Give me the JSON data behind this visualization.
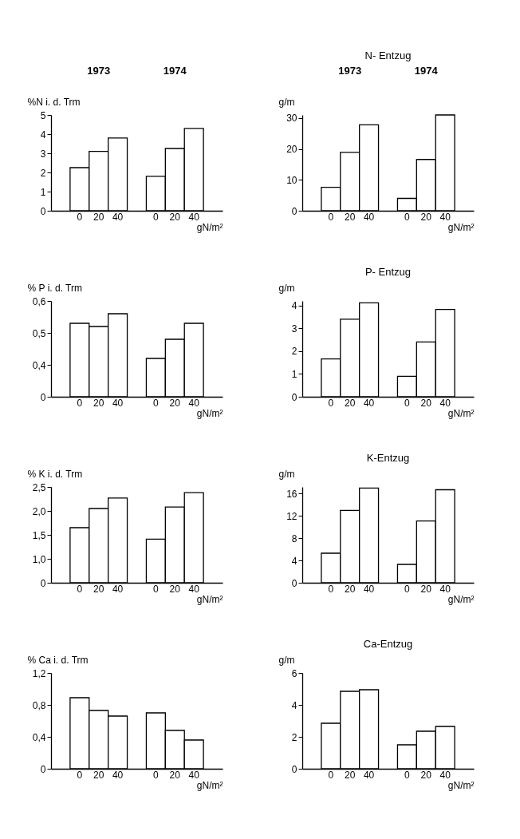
{
  "chart_data": [
    {
      "type": "bar",
      "ylabel": "%N i. d. Trm",
      "xlabel": "gN/m²",
      "annotations": [
        "1973",
        "1974"
      ],
      "categories": [
        "0",
        "20",
        "40",
        "0",
        "20",
        "40"
      ],
      "values": [
        2.25,
        3.1,
        3.8,
        1.8,
        3.25,
        4.3
      ],
      "color": "#ffffff",
      "ylim": [
        0,
        5
      ],
      "yticks": [
        0,
        1,
        2,
        3,
        4,
        5
      ]
    },
    {
      "type": "bar",
      "title": "N- Entzug",
      "ylabel": "g/m",
      "xlabel": "gN/m²",
      "annotations": [
        "1973",
        "1974"
      ],
      "categories": [
        "0",
        "20",
        "40",
        "0",
        "20",
        "40"
      ],
      "values": [
        7.6,
        18.9,
        27.8,
        4,
        16.6,
        31
      ],
      "color": "#ffffff",
      "ylim": [
        0,
        31
      ],
      "yticks": [
        0,
        10,
        20,
        30
      ]
    },
    {
      "type": "bar",
      "ylabel": "% P i. d. Trm",
      "xlabel": "gN/m²",
      "categories": [
        "0",
        "20",
        "40",
        "0",
        "20",
        "40"
      ],
      "values": [
        0.53,
        0.52,
        0.56,
        0.42,
        0.48,
        0.53
      ],
      "color": "#ffffff",
      "ylim": [
        0.3,
        0.6
      ],
      "yticks": [
        {
          "value": 0.3,
          "label": "0"
        },
        {
          "value": 0.4,
          "label": "0,4"
        },
        {
          "value": 0.5,
          "label": "0,5"
        },
        {
          "value": 0.6,
          "label": "0,6"
        }
      ]
    },
    {
      "type": "bar",
      "title": "P- Entzug",
      "ylabel": "g/m",
      "xlabel": "gN/m²",
      "categories": [
        "0",
        "20",
        "40",
        "0",
        "20",
        "40"
      ],
      "values": [
        1.66,
        3.4,
        4.12,
        0.9,
        2.4,
        3.83
      ],
      "color": "#ffffff",
      "ylim": [
        0,
        4.2
      ],
      "yticks": [
        0,
        1,
        2,
        3,
        4
      ]
    },
    {
      "type": "bar",
      "ylabel": "% K i. d. Trm",
      "xlabel": "gN/m²",
      "categories": [
        "0",
        "20",
        "40",
        "0",
        "20",
        "40"
      ],
      "values": [
        1.65,
        2.05,
        2.27,
        1.41,
        2.08,
        2.38
      ],
      "color": "#ffffff",
      "ylim": [
        0.5,
        2.5
      ],
      "yticks": [
        {
          "value": 0.5,
          "label": "0"
        },
        {
          "value": 1,
          "label": "1,0"
        },
        {
          "value": 1.5,
          "label": "1,5"
        },
        {
          "value": 2,
          "label": "2,0"
        },
        {
          "value": 2.5,
          "label": "2,5"
        }
      ]
    },
    {
      "type": "bar",
      "title": "K-Entzug",
      "ylabel": "g/m",
      "xlabel": "gN/m²",
      "categories": [
        "0",
        "20",
        "40",
        "0",
        "20",
        "40"
      ],
      "values": [
        5.3,
        13,
        17,
        3.3,
        11.1,
        16.7
      ],
      "color": "#ffffff",
      "ylim": [
        0,
        17.2
      ],
      "yticks": [
        0,
        4,
        8,
        12,
        16
      ]
    },
    {
      "type": "bar",
      "ylabel": "% Ca i. d. Trm",
      "xlabel": "gN/m²",
      "categories": [
        "0",
        "20",
        "40",
        "0",
        "20",
        "40"
      ],
      "values": [
        0.89,
        0.73,
        0.66,
        0.7,
        0.48,
        0.36
      ],
      "color": "#ffffff",
      "ylim": [
        0,
        1.2
      ],
      "yticks": [
        0,
        {
          "value": 0.4,
          "label": "0,4"
        },
        {
          "value": 0.8,
          "label": "0,8"
        },
        {
          "value": 1.2,
          "label": "1,2"
        }
      ]
    },
    {
      "type": "bar",
      "title": "Ca-Entzug",
      "ylabel": "g/m",
      "xlabel": "gN/m²",
      "categories": [
        "0",
        "20",
        "40",
        "0",
        "20",
        "40"
      ],
      "values": [
        2.85,
        4.85,
        4.95,
        1.5,
        2.35,
        2.65
      ],
      "color": "#ffffff",
      "ylim": [
        0,
        6
      ],
      "yticks": [
        0,
        2,
        4,
        6
      ]
    }
  ]
}
